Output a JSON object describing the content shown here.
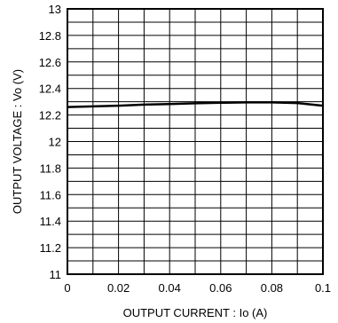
{
  "chart_data": {
    "type": "line",
    "xlabel": "OUTPUT  CURRENT : Io  (A)",
    "ylabel": "OUTPUT  VOLTAGE : Vo  (V)",
    "xlim": [
      0,
      0.1
    ],
    "ylim": [
      11,
      13
    ],
    "grid": true,
    "x_ticks": [
      "0",
      "0.02",
      "0.04",
      "0.06",
      "0.08",
      "0.1"
    ],
    "y_ticks": [
      "11",
      "11.2",
      "11.4",
      "11.6",
      "11.8",
      "12",
      "12.2",
      "12.4",
      "12.6",
      "12.8",
      "13"
    ],
    "series": [
      {
        "x": [
          0,
          0.01,
          0.02,
          0.03,
          0.04,
          0.05,
          0.06,
          0.07,
          0.08,
          0.09,
          0.1
        ],
        "y": [
          12.26,
          12.265,
          12.27,
          12.278,
          12.283,
          12.288,
          12.292,
          12.295,
          12.295,
          12.29,
          12.27
        ]
      }
    ]
  }
}
